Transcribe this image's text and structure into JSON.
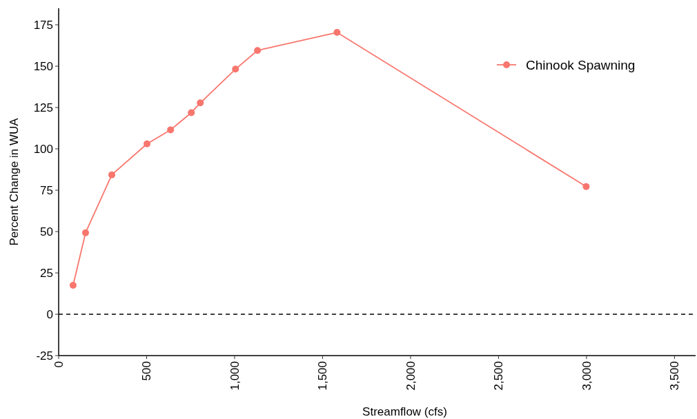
{
  "chart_data": {
    "type": "line",
    "xlabel": "Streamflow (cfs)",
    "ylabel": "Percent Change in WUA",
    "x": [
      82,
      153,
      302,
      502,
      636,
      754,
      805,
      1005,
      1130,
      1582,
      2998
    ],
    "series": [
      {
        "name": "Chinook Spawning",
        "color": "#f8766d",
        "values": [
          17.5,
          49.3,
          84.3,
          103,
          111.5,
          121.9,
          127.8,
          148.2,
          159.5,
          170.4,
          77.2
        ]
      }
    ],
    "xlim": [
      0,
      3620
    ],
    "ylim": [
      -25,
      185
    ],
    "xticks": [
      0,
      500,
      {
        "value": 1000,
        "label": "1,000"
      },
      {
        "value": 1500,
        "label": "1,500"
      },
      {
        "value": 2000,
        "label": "2,000"
      },
      {
        "value": 2500,
        "label": "2,500"
      },
      {
        "value": 3000,
        "label": "3,000"
      },
      {
        "value": 3500,
        "label": "3,500"
      }
    ],
    "yticks": [
      -25,
      0,
      25,
      50,
      75,
      100,
      125,
      150,
      175
    ],
    "ref_lines": [
      {
        "axis": "y",
        "value": 0,
        "color": "#000000",
        "line_style": "dashed"
      }
    ],
    "grid": false,
    "legend": "top right",
    "marker": "circle",
    "line_style": "solid"
  }
}
